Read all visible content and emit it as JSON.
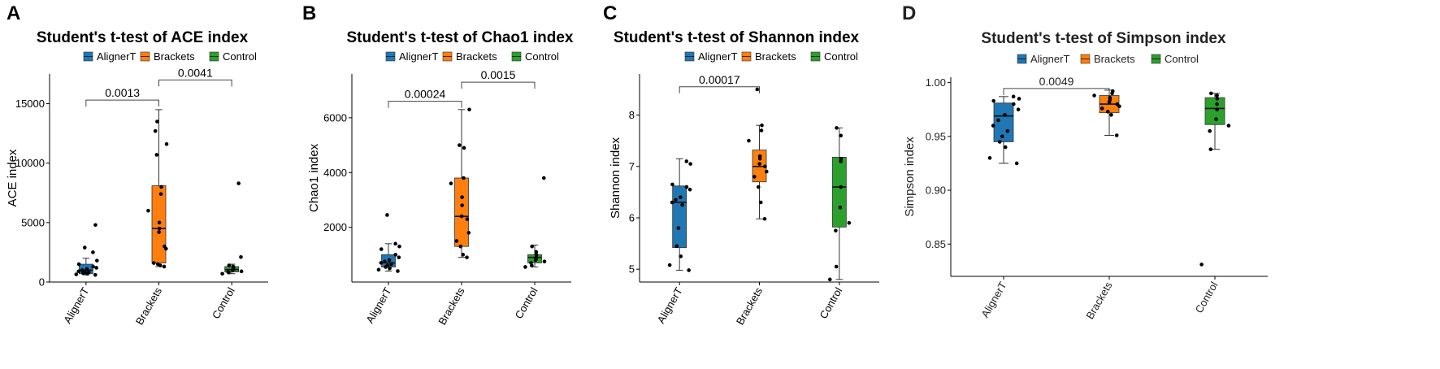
{
  "figure": {
    "legend_title": "",
    "legend_entries": [
      "AlignerT",
      "Brackets",
      "Control"
    ],
    "colors": {
      "AlignerT": "#1f77b4",
      "Brackets": "#ff7f0e",
      "Control": "#2ca02c"
    }
  },
  "chart_data": [
    {
      "panel": "A",
      "type": "box",
      "title": "Student's t-test of ACE index",
      "xlabel": "",
      "ylabel": "ACE index",
      "categories": [
        "AlignerT",
        "Brackets",
        "Control"
      ],
      "ylim": [
        0,
        17500
      ],
      "yticks": [
        0,
        5000,
        10000,
        15000
      ],
      "ytick_labels": [
        "0",
        "5000",
        "10000",
        "15000"
      ],
      "boxes": [
        {
          "q1": 700,
          "median": 1000,
          "q3": 1500,
          "whisker_low": 600,
          "whisker_high": 2000,
          "points": [
            600,
            650,
            700,
            750,
            800,
            850,
            900,
            1000,
            1100,
            1200,
            1300,
            1500,
            1800,
            2500,
            2900,
            4800
          ]
        },
        {
          "q1": 1600,
          "median": 4500,
          "q3": 8100,
          "whisker_low": 1300,
          "whisker_high": 14500,
          "points": [
            1300,
            1400,
            1500,
            1600,
            2800,
            3000,
            4200,
            4500,
            5000,
            6000,
            7400,
            8000,
            10700,
            11600,
            12700,
            13500
          ]
        },
        {
          "q1": 850,
          "median": 1050,
          "q3": 1300,
          "whisker_low": 700,
          "whisker_high": 1500,
          "points": [
            700,
            800,
            850,
            900,
            1000,
            1050,
            1100,
            1200,
            1300,
            1400,
            2100,
            8300
          ]
        }
      ],
      "comparisons": [
        {
          "from": "AlignerT",
          "to": "Brackets",
          "label": "0.0013",
          "y": 15300
        },
        {
          "from": "Brackets",
          "to": "Control",
          "label": "0.0041",
          "y": 17000
        }
      ]
    },
    {
      "panel": "B",
      "type": "box",
      "title": "Student's t-test of Chao1 index",
      "xlabel": "",
      "ylabel": "Chao1 index",
      "categories": [
        "AlignerT",
        "Brackets",
        "Control"
      ],
      "ylim": [
        0,
        7600
      ],
      "yticks": [
        2000,
        4000,
        6000
      ],
      "ytick_labels": [
        "2000",
        "4000",
        "6000"
      ],
      "boxes": [
        {
          "q1": 550,
          "median": 700,
          "q3": 1000,
          "whisker_low": 400,
          "whisker_high": 1400,
          "points": [
            400,
            450,
            500,
            550,
            600,
            650,
            700,
            750,
            800,
            900,
            1000,
            1200,
            1300,
            1400,
            2450
          ]
        },
        {
          "q1": 1300,
          "median": 2400,
          "q3": 3800,
          "whisker_low": 900,
          "whisker_high": 6300,
          "points": [
            900,
            1000,
            1300,
            1500,
            1800,
            2300,
            2400,
            2800,
            3100,
            3600,
            3800,
            4900,
            5000,
            6300
          ]
        },
        {
          "q1": 700,
          "median": 900,
          "q3": 1000,
          "whisker_low": 550,
          "whisker_high": 1350,
          "points": [
            550,
            600,
            700,
            750,
            800,
            850,
            900,
            1000,
            1100,
            1300,
            3800
          ]
        }
      ],
      "comparisons": [
        {
          "from": "AlignerT",
          "to": "Brackets",
          "label": "0.00024",
          "y": 6600
        },
        {
          "from": "Brackets",
          "to": "Control",
          "label": "0.0015",
          "y": 7300
        }
      ]
    },
    {
      "panel": "C",
      "type": "box",
      "title": "Student's t-test of Shannon index",
      "xlabel": "",
      "ylabel": "Shannon index",
      "categories": [
        "AlignerT",
        "Brackets",
        "Control"
      ],
      "ylim": [
        4.75,
        8.8
      ],
      "yticks": [
        5,
        6,
        7,
        8
      ],
      "ytick_labels": [
        "5",
        "6",
        "7",
        "8"
      ],
      "boxes": [
        {
          "q1": 5.42,
          "median": 6.3,
          "q3": 6.62,
          "whisker_low": 4.98,
          "whisker_high": 7.15,
          "points": [
            4.98,
            5.08,
            5.25,
            5.45,
            5.8,
            6.25,
            6.3,
            6.35,
            6.4,
            6.55,
            6.6,
            6.65,
            7.05,
            7.1
          ]
        },
        {
          "q1": 6.7,
          "median": 7.0,
          "q3": 7.32,
          "whisker_low": 5.98,
          "whisker_high": 7.8,
          "points": [
            5.98,
            6.3,
            6.6,
            6.8,
            6.9,
            7.0,
            7.05,
            7.15,
            7.2,
            7.5,
            7.7,
            7.8,
            8.5
          ]
        },
        {
          "q1": 5.82,
          "median": 6.6,
          "q3": 7.18,
          "whisker_low": 4.8,
          "whisker_high": 7.75,
          "points": [
            4.8,
            5.05,
            5.75,
            5.9,
            6.2,
            6.6,
            7.1,
            7.15,
            7.6,
            7.75
          ]
        }
      ],
      "comparisons": [
        {
          "from": "AlignerT",
          "to": "Brackets",
          "label": "0.00017",
          "y": 8.55
        }
      ]
    },
    {
      "panel": "D",
      "type": "box",
      "title": "Student's t-test of Simpson index",
      "xlabel": "",
      "ylabel": "Simpson index",
      "categories": [
        "AlignerT",
        "Brackets",
        "Control"
      ],
      "ylim": [
        0.82,
        1.005
      ],
      "yticks": [
        0.85,
        0.9,
        0.95,
        1.0
      ],
      "ytick_labels": [
        "0.85",
        "0.90",
        "0.95",
        "1.00"
      ],
      "boxes": [
        {
          "q1": 0.945,
          "median": 0.969,
          "q3": 0.981,
          "whisker_low": 0.925,
          "whisker_high": 0.987,
          "points": [
            0.925,
            0.93,
            0.94,
            0.945,
            0.95,
            0.955,
            0.96,
            0.965,
            0.97,
            0.975,
            0.98,
            0.983,
            0.985,
            0.987
          ]
        },
        {
          "q1": 0.972,
          "median": 0.98,
          "q3": 0.988,
          "whisker_low": 0.951,
          "whisker_high": 0.993,
          "points": [
            0.951,
            0.97,
            0.973,
            0.976,
            0.978,
            0.98,
            0.982,
            0.984,
            0.986,
            0.988,
            0.99,
            0.992
          ]
        },
        {
          "q1": 0.961,
          "median": 0.976,
          "q3": 0.986,
          "whisker_low": 0.938,
          "whisker_high": 0.99,
          "points": [
            0.831,
            0.938,
            0.955,
            0.96,
            0.966,
            0.975,
            0.98,
            0.985,
            0.988,
            0.99
          ]
        }
      ],
      "comparisons": [
        {
          "from": "AlignerT",
          "to": "Brackets",
          "label": "0.0049",
          "y": 0.9945
        }
      ]
    }
  ]
}
